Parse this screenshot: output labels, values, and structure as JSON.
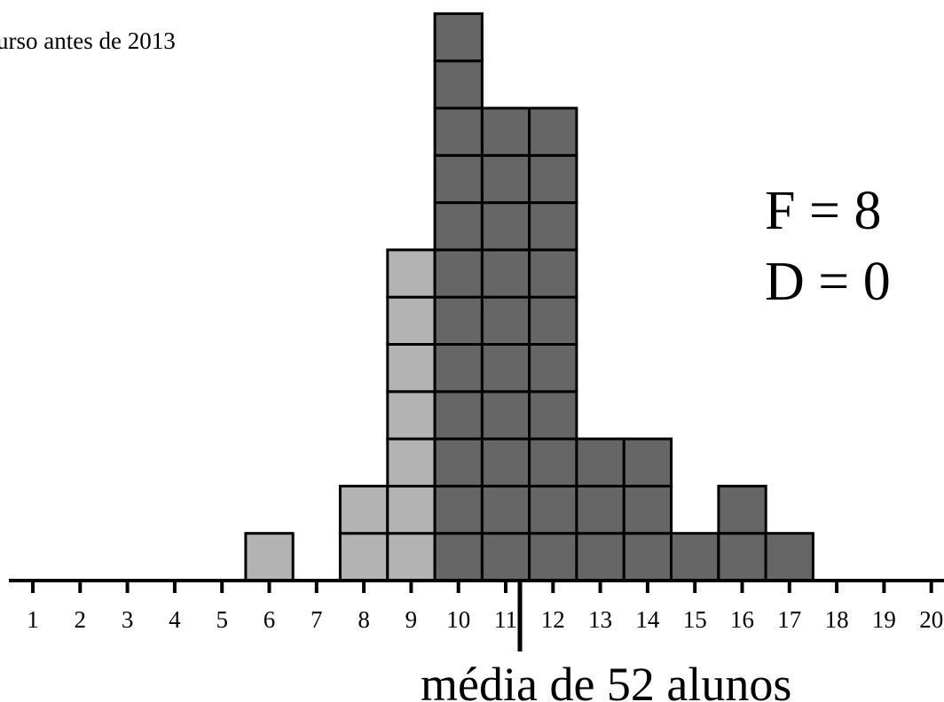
{
  "chart_data": {
    "type": "bar",
    "title": "urso antes de 2013",
    "xlabel": "",
    "ylabel": "",
    "categories": [
      "1",
      "2",
      "3",
      "4",
      "5",
      "6",
      "7",
      "8",
      "9",
      "10",
      "11",
      "12",
      "13",
      "14",
      "15",
      "16",
      "17",
      "18",
      "19",
      "20"
    ],
    "series": [
      {
        "values": [
          0,
          0,
          0,
          0,
          0,
          1,
          0,
          2,
          7,
          0,
          0,
          0,
          0,
          0,
          0,
          0,
          0,
          0,
          0,
          0
        ],
        "color": "#b3b3b3"
      },
      {
        "values": [
          0,
          0,
          0,
          0,
          0,
          0,
          0,
          0,
          0,
          12,
          10,
          10,
          3,
          3,
          1,
          2,
          1,
          0,
          0,
          0
        ],
        "color": "#666666"
      }
    ],
    "stacked_units": true,
    "xlim": [
      1,
      20
    ],
    "ylim": [
      0,
      12
    ],
    "grid": false,
    "annotations": {
      "stats": [
        "F = 8",
        "D = 0"
      ],
      "mean_label": "média de 52 alunos",
      "mean_value": 11.3
    }
  }
}
